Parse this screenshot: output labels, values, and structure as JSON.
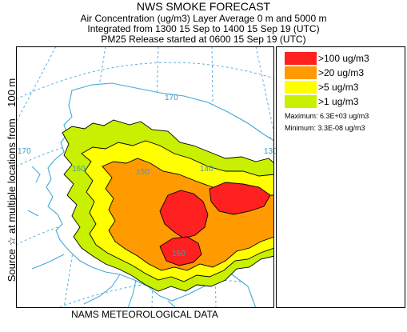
{
  "header": {
    "title": "NWS SMOKE FORECAST",
    "line1": "Air Concentration (ug/m3) Layer Average     0 m and  5000 m",
    "line2": "Integrated from 1300 15 Sep to 1400 15 Sep 19 (UTC)",
    "line3": "PM25 Release started at 0600 15 Sep 19 (UTC)"
  },
  "footer": "NAMS METEOROLOGICAL DATA",
  "side_label": {
    "part1": "Source ☆",
    "part2": "at multiple locations",
    "part3": "from    100 m"
  },
  "legend": {
    "items": [
      {
        "label": ">100 ug/m3",
        "color": "#ff2020"
      },
      {
        "label": ">20 ug/m3",
        "color": "#ff9a00"
      },
      {
        "label": ">5 ug/m3",
        "color": "#ffff00"
      },
      {
        "label": ">1 ug/m3",
        "color": "#c8f000"
      }
    ],
    "maximum": "Maximum: 6.3E+03 ug/m3",
    "minimum": "Minimum: 3.3E-08 ug/m3"
  },
  "map": {
    "longitude_labels": [
      "170",
      "160",
      "150",
      "140",
      "170",
      "160",
      "130"
    ],
    "colors": {
      "coast": "#3fa9d9",
      "grid": "#4aa8d8",
      "contour": "#000000"
    }
  }
}
